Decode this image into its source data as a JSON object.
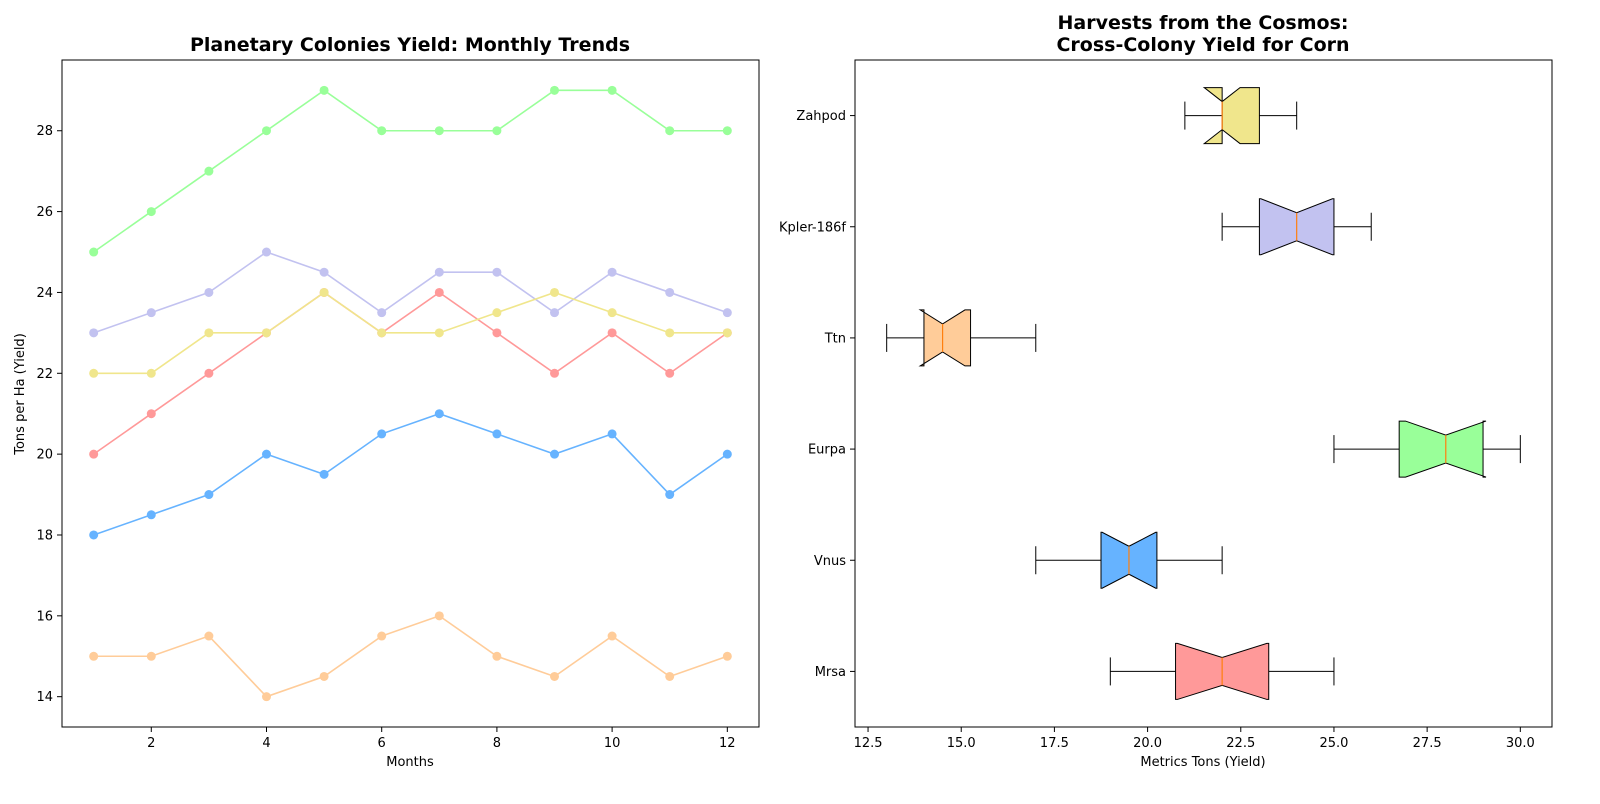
{
  "chart_data": [
    {
      "type": "line",
      "title": "Planetary Colonies Yield: Monthly Trends",
      "xlabel": "Months",
      "ylabel": "Tons per Ha (Yield)",
      "xlim": [
        0.45,
        12.55
      ],
      "ylim": [
        13.25,
        29.75
      ],
      "xticks": [
        2,
        4,
        6,
        8,
        10,
        12
      ],
      "xtick_labels": [
        "2",
        "4",
        "6",
        "8",
        "10",
        "12"
      ],
      "yticks": [
        14,
        16,
        18,
        20,
        22,
        24,
        26,
        28
      ],
      "ytick_labels": [
        "14",
        "16",
        "18",
        "20",
        "22",
        "24",
        "26",
        "28"
      ],
      "grid": false,
      "x": [
        1,
        2,
        3,
        4,
        5,
        6,
        7,
        8,
        9,
        10,
        11,
        12
      ],
      "series": [
        {
          "color": "#ff9999",
          "values": [
            20,
            21,
            22,
            23,
            24,
            23,
            24,
            23,
            22,
            23,
            22,
            23
          ]
        },
        {
          "color": "#66b3ff",
          "values": [
            18,
            18.5,
            19,
            20,
            19.5,
            20.5,
            21,
            20.5,
            20,
            20.5,
            19,
            20
          ]
        },
        {
          "color": "#99ff99",
          "values": [
            25,
            26,
            27,
            28,
            29,
            28,
            28,
            28,
            29,
            29,
            28,
            28
          ]
        },
        {
          "color": "#ffcc99",
          "values": [
            15,
            15,
            15.5,
            14,
            14.5,
            15.5,
            16,
            15,
            14.5,
            15.5,
            14.5,
            15
          ]
        },
        {
          "color": "#c2c2f0",
          "values": [
            23,
            23.5,
            24,
            25,
            24.5,
            23.5,
            24.5,
            24.5,
            23.5,
            24.5,
            24,
            23.5
          ]
        },
        {
          "color": "#f0e68c",
          "values": [
            22,
            22,
            23,
            23,
            24,
            23,
            23,
            23.5,
            24,
            23.5,
            23,
            23
          ]
        }
      ]
    },
    {
      "type": "box",
      "orientation": "horizontal",
      "notched": true,
      "title_lines": [
        "Harvests from the Cosmos:",
        "Cross-Colony Yield for Corn"
      ],
      "xlabel": "Metrics Tons (Yield)",
      "ylabel": "",
      "xlim": [
        12.15,
        30.85
      ],
      "xticks": [
        12.5,
        15.0,
        17.5,
        20.0,
        22.5,
        25.0,
        27.5,
        30.0
      ],
      "xtick_labels": [
        "12.5",
        "15.0",
        "17.5",
        "20.0",
        "22.5",
        "25.0",
        "27.5",
        "30.0"
      ],
      "categories": [
        "Mrsa",
        "Vnus",
        "Eurpa",
        "Ttn",
        "Kpler-186f",
        "Zahpod"
      ],
      "median_color": "#ff7f0e",
      "boxes": [
        {
          "label": "Mrsa",
          "color": "#ff9999",
          "whislo": 19,
          "q1": 20.75,
          "med": 22,
          "q3": 23.25,
          "whishi": 25
        },
        {
          "label": "Vnus",
          "color": "#66b3ff",
          "whislo": 17,
          "q1": 18.75,
          "med": 19.5,
          "q3": 20.25,
          "whishi": 22
        },
        {
          "label": "Eurpa",
          "color": "#99ff99",
          "whislo": 25,
          "q1": 26.75,
          "med": 28,
          "q3": 29,
          "whishi": 30
        },
        {
          "label": "Ttn",
          "color": "#ffcc99",
          "whislo": 13,
          "q1": 14,
          "med": 14.5,
          "q3": 15.25,
          "whishi": 17
        },
        {
          "label": "Kpler-186f",
          "color": "#c2c2f0",
          "whislo": 22,
          "q1": 23,
          "med": 24,
          "q3": 25,
          "whishi": 26
        },
        {
          "label": "Zahpod",
          "color": "#f0e68c",
          "whislo": 21,
          "q1": 22,
          "med": 22,
          "q3": 23,
          "whishi": 24
        }
      ]
    }
  ]
}
